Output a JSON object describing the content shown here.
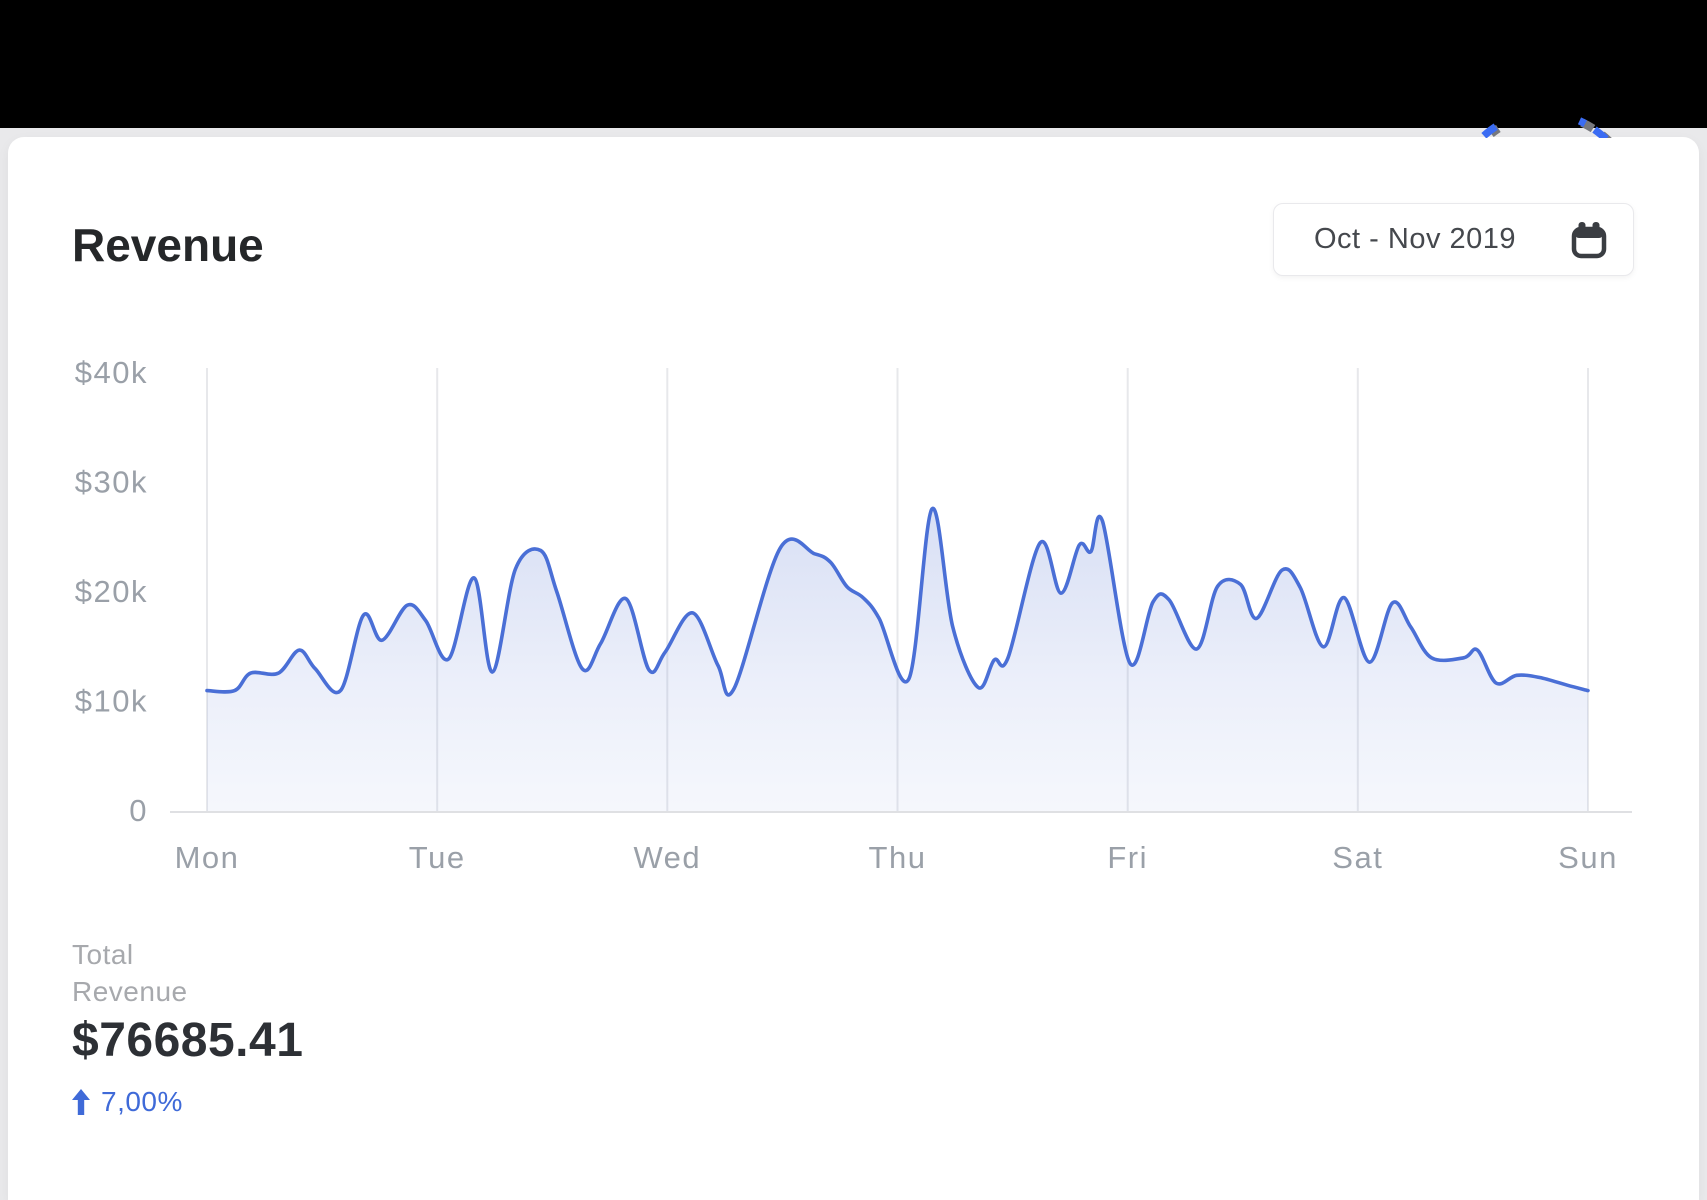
{
  "page": {
    "background": "#e9e9eb",
    "topbar_color": "#000000",
    "card_color": "#ffffff"
  },
  "header": {
    "title": "Revenue",
    "date_range": "Oct - Nov 2019"
  },
  "decoration": {
    "blue_color": "#3b6cf3",
    "gray_color": "#77787d"
  },
  "calendar_icon_color": "#3a3d42",
  "chart_data": {
    "type": "area",
    "title": "Revenue",
    "x_categories": [
      "Mon",
      "Tue",
      "Wed",
      "Thu",
      "Fri",
      "Sat",
      "Sun"
    ],
    "y_ticks": [
      {
        "label": "$40k",
        "value": 40
      },
      {
        "label": "$30k",
        "value": 30
      },
      {
        "label": "$20k",
        "value": 20
      },
      {
        "label": "$10k",
        "value": 10
      },
      {
        "label": "0",
        "value": 0
      }
    ],
    "ylim": [
      0,
      40
    ],
    "unit": "thousand USD",
    "grid": "vertical",
    "legend": "none",
    "line_color": "#4a6fd6",
    "fill_color": "#6581d6",
    "points_format": [
      "day_offset (0=Mon .. 6=Sun)",
      "revenue_thousands_usd"
    ],
    "points": [
      [
        0.0,
        10.9
      ],
      [
        0.12,
        10.9
      ],
      [
        0.19,
        12.5
      ],
      [
        0.31,
        12.5
      ],
      [
        0.4,
        14.6
      ],
      [
        0.47,
        12.9
      ],
      [
        0.58,
        10.9
      ],
      [
        0.68,
        17.8
      ],
      [
        0.76,
        15.5
      ],
      [
        0.87,
        18.7
      ],
      [
        0.95,
        17.3
      ],
      [
        1.05,
        13.8
      ],
      [
        1.16,
        21.2
      ],
      [
        1.24,
        12.6
      ],
      [
        1.34,
        22.0
      ],
      [
        1.45,
        23.7
      ],
      [
        1.52,
        19.9
      ],
      [
        1.63,
        12.9
      ],
      [
        1.71,
        15.2
      ],
      [
        1.82,
        19.3
      ],
      [
        1.92,
        12.8
      ],
      [
        1.99,
        14.4
      ],
      [
        2.11,
        18.0
      ],
      [
        2.22,
        13.2
      ],
      [
        2.29,
        11.1
      ],
      [
        2.49,
        23.9
      ],
      [
        2.64,
        23.4
      ],
      [
        2.71,
        22.6
      ],
      [
        2.78,
        20.4
      ],
      [
        2.85,
        19.4
      ],
      [
        2.92,
        17.5
      ],
      [
        3.05,
        12.0
      ],
      [
        3.15,
        27.5
      ],
      [
        3.24,
        16.7
      ],
      [
        3.35,
        11.2
      ],
      [
        3.42,
        13.7
      ],
      [
        3.48,
        13.9
      ],
      [
        3.62,
        24.4
      ],
      [
        3.71,
        19.8
      ],
      [
        3.79,
        24.2
      ],
      [
        3.84,
        23.6
      ],
      [
        3.89,
        26.4
      ],
      [
        4.01,
        13.4
      ],
      [
        4.11,
        19.0
      ],
      [
        4.18,
        19.2
      ],
      [
        4.3,
        14.7
      ],
      [
        4.39,
        20.4
      ],
      [
        4.49,
        20.6
      ],
      [
        4.56,
        17.5
      ],
      [
        4.67,
        21.9
      ],
      [
        4.75,
        20.3
      ],
      [
        4.85,
        14.9
      ],
      [
        4.94,
        19.4
      ],
      [
        5.05,
        13.5
      ],
      [
        5.15,
        18.9
      ],
      [
        5.23,
        16.7
      ],
      [
        5.32,
        13.9
      ],
      [
        5.46,
        13.9
      ],
      [
        5.52,
        14.6
      ],
      [
        5.6,
        11.6
      ],
      [
        5.69,
        12.3
      ],
      [
        5.79,
        12.1
      ],
      [
        5.91,
        11.4
      ],
      [
        6.0,
        10.9
      ]
    ]
  },
  "summary": {
    "label_line1": "Total",
    "label_line2": "Revenue",
    "total": "$76685.41",
    "change": "7,00%",
    "change_direction": "up",
    "change_color": "#3f6ad8"
  }
}
